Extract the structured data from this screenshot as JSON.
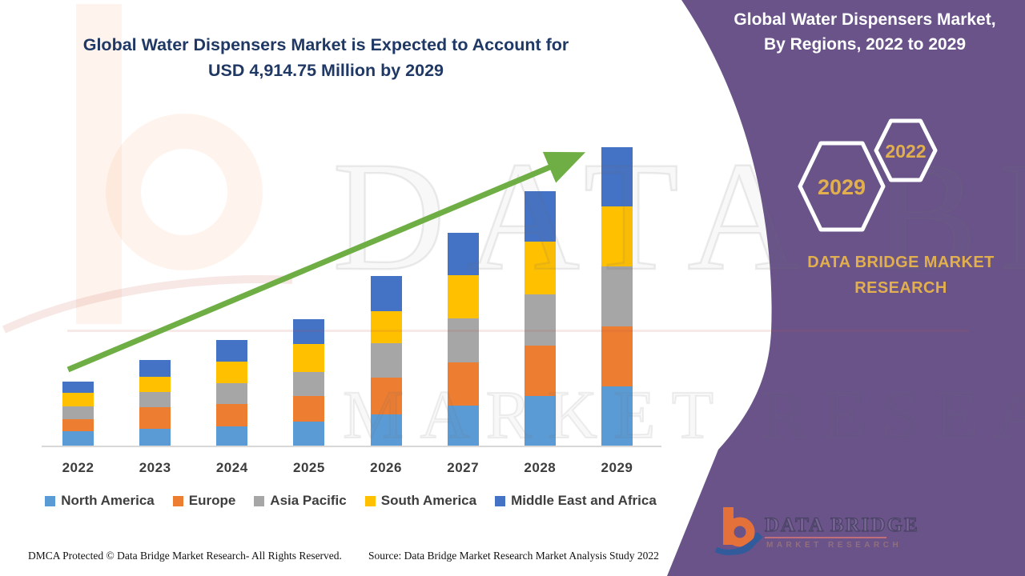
{
  "main_title": {
    "line1": "Global Water Dispensers Market is Expected to Account for",
    "line2": "USD 4,914.75 Million by 2029",
    "color": "#1F3864"
  },
  "side_panel": {
    "panel_color": "#695389",
    "title_line1": "Global Water Dispensers Market,",
    "title_line2": "By Regions, 2022 to 2029",
    "hexagons": [
      {
        "label": "2029"
      },
      {
        "label": "2022"
      }
    ],
    "brand_text_line1": "DATA BRIDGE MARKET",
    "brand_text_line2": "RESEARCH",
    "accent_gold": "#E2AF4E"
  },
  "logo": {
    "name_line": "DATA BRIDGE",
    "sub_line": "MARKET RESEARCH"
  },
  "watermark": {
    "row1": "DATA BRIDGE",
    "row2": "MARKET RESEARCH"
  },
  "footer": {
    "left_text": "DMCA Protected © Data Bridge Market Research- All Rights Reserved.",
    "right_text": "Source: Data Bridge Market Research Market Analysis Study 2022"
  },
  "chart_data": {
    "type": "bar",
    "stacked": true,
    "title": "Global Water Dispensers Market is Expected to Account for USD 4,914.75 Million by 2029",
    "unit": "USD Million",
    "categories": [
      "2022",
      "2023",
      "2024",
      "2025",
      "2026",
      "2027",
      "2028",
      "2029"
    ],
    "series": [
      {
        "name": "North America",
        "color": "#5B9BD5",
        "values": [
          233,
          277,
          316,
          395,
          514,
          659,
          813,
          970
        ]
      },
      {
        "name": "Europe",
        "color": "#ED7D31",
        "values": [
          207,
          352,
          365,
          418,
          606,
          712,
          834,
          990
        ]
      },
      {
        "name": "Asia Pacific",
        "color": "#A6A6A6",
        "values": [
          211,
          250,
          352,
          395,
          571,
          725,
          843,
          990
        ]
      },
      {
        "name": "South America",
        "color": "#FFC000",
        "values": [
          220,
          254,
          351,
          461,
          527,
          716,
          870,
          990
        ]
      },
      {
        "name": "Middle East and Africa",
        "color": "#4472C4",
        "values": [
          188,
          281,
          361,
          418,
          580,
          689,
          834,
          974.75
        ]
      }
    ],
    "totals": [
      1059,
      1414,
      1745,
      2087,
      2798,
      3501,
      4194,
      4914.75
    ],
    "ylim": [
      0,
      4950
    ],
    "grid": false,
    "legend_position": "bottom",
    "annotations": [
      {
        "type": "trend_arrow_up",
        "color": "#6FAE44"
      }
    ]
  }
}
